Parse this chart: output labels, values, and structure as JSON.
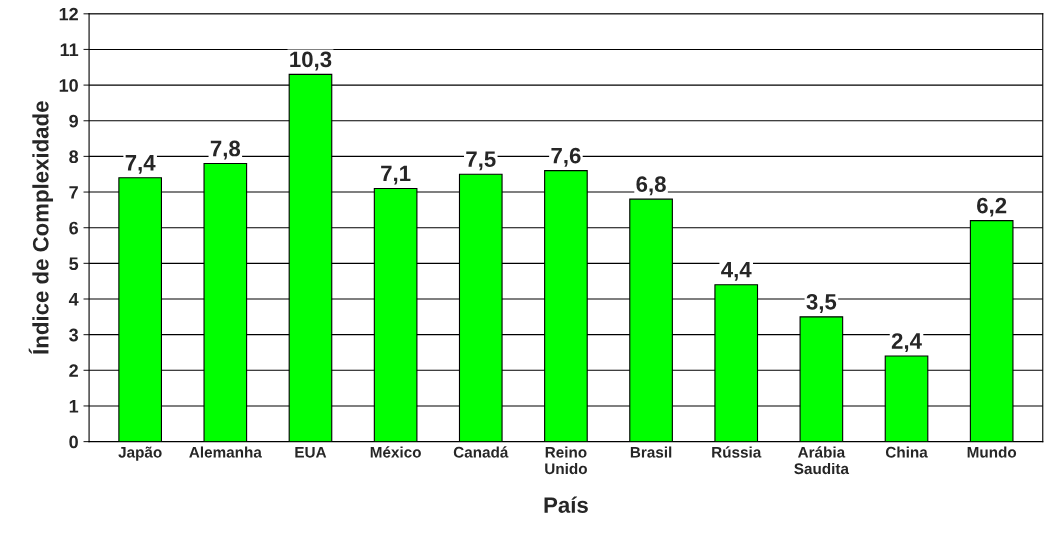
{
  "chart_data": {
    "type": "bar",
    "xlabel": "País",
    "ylabel": "Índice de Complexidade",
    "categories": [
      "Japão",
      "Alemanha",
      "EUA",
      "México",
      "Canadá",
      "Reino\nUnido",
      "Brasil",
      "Rússia",
      "Arábia\nSaudita",
      "China",
      "Mundo"
    ],
    "values": [
      7.4,
      7.8,
      10.3,
      7.1,
      7.5,
      7.6,
      6.8,
      4.4,
      3.5,
      2.4,
      6.2
    ],
    "value_labels": [
      "7,4",
      "7,8",
      "10,3",
      "7,1",
      "7,5",
      "7,6",
      "6,8",
      "4,4",
      "3,5",
      "2,4",
      "6,2"
    ],
    "color": "#00ff00",
    "ylim": [
      0,
      12
    ],
    "yticks": [
      0,
      1,
      2,
      3,
      4,
      5,
      6,
      7,
      8,
      9,
      10,
      11,
      12
    ],
    "grid": "y"
  }
}
